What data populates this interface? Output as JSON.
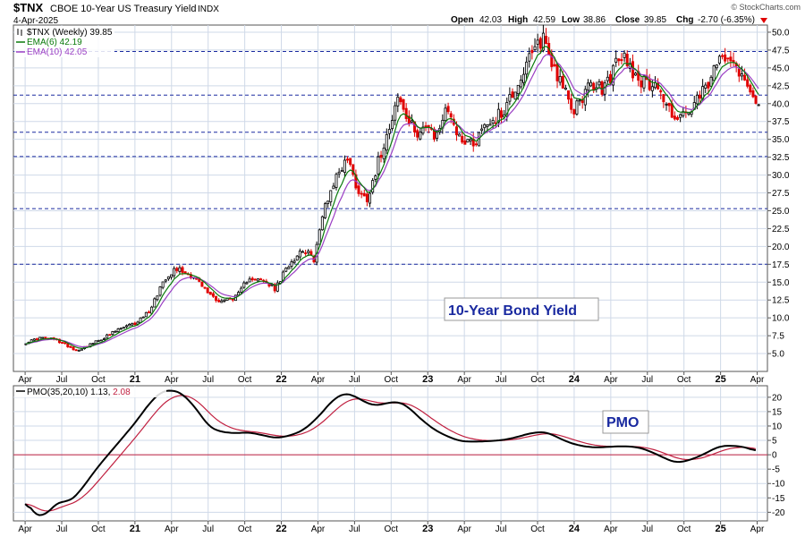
{
  "header": {
    "symbol": "$TNX",
    "name": "CBOE 10-Year US Treasury Yield",
    "exchange": "INDX",
    "date": "4-Apr-2025",
    "watermark": "© StockCharts.com",
    "open_label": "Open",
    "open": "42.03",
    "high_label": "High",
    "high": "42.59",
    "low_label": "Low",
    "low": "38.86",
    "close_label": "Close",
    "close": "39.85",
    "chg_label": "Chg",
    "chg": "-2.70 (-6.35%)"
  },
  "colors": {
    "grid": "#cfd9e8",
    "up": "#000000",
    "down": "#e00000",
    "ema_short": "#0a7a0a",
    "ema_long": "#9b3fc4",
    "pmo": "#000000",
    "pmo_signal": "#c02040",
    "zero_line": "#c02040",
    "dashed_level": "#1a2aa0"
  },
  "chart_data": [
    {
      "type": "candlestick",
      "legend": [
        {
          "name": "$TNX (Weekly)",
          "value": "39.85"
        },
        {
          "name": "EMA(6)",
          "value": "42.19"
        },
        {
          "name": "EMA(10)",
          "value": "42.05"
        }
      ],
      "annotation": "10-Year Bond Yield",
      "ylim": [
        2.5,
        51
      ],
      "yticks": [
        "5.0",
        "7.5",
        "10.0",
        "12.5",
        "15.0",
        "17.5",
        "20.0",
        "22.5",
        "25.0",
        "27.5",
        "30.0",
        "32.5",
        "35.0",
        "37.5",
        "40.0",
        "42.5",
        "45.0",
        "47.5",
        "50.0"
      ],
      "horizontal_levels": [
        17.5,
        25.3,
        32.6,
        36.0,
        41.2,
        47.3
      ],
      "x_ticks": [
        {
          "label": "Apr",
          "x": 2020.25
        },
        {
          "label": "Jul",
          "x": 2020.5
        },
        {
          "label": "Oct",
          "x": 2020.75
        },
        {
          "label": "21",
          "x": 2021.0,
          "bold": true
        },
        {
          "label": "Apr",
          "x": 2021.25
        },
        {
          "label": "Jul",
          "x": 2021.5
        },
        {
          "label": "Oct",
          "x": 2021.75
        },
        {
          "label": "22",
          "x": 2022.0,
          "bold": true
        },
        {
          "label": "Apr",
          "x": 2022.25
        },
        {
          "label": "Jul",
          "x": 2022.5
        },
        {
          "label": "Oct",
          "x": 2022.75
        },
        {
          "label": "23",
          "x": 2023.0,
          "bold": true
        },
        {
          "label": "Apr",
          "x": 2023.25
        },
        {
          "label": "Jul",
          "x": 2023.5
        },
        {
          "label": "Oct",
          "x": 2023.75
        },
        {
          "label": "24",
          "x": 2024.0,
          "bold": true
        },
        {
          "label": "Apr",
          "x": 2024.25
        },
        {
          "label": "Jul",
          "x": 2024.5
        },
        {
          "label": "Oct",
          "x": 2024.75
        },
        {
          "label": "25",
          "x": 2025.0,
          "bold": true
        },
        {
          "label": "Apr",
          "x": 2025.25
        }
      ],
      "close_anchors": [
        [
          2020.25,
          6.5
        ],
        [
          2020.35,
          7.2
        ],
        [
          2020.45,
          7.0
        ],
        [
          2020.55,
          6.0
        ],
        [
          2020.6,
          5.4
        ],
        [
          2020.75,
          6.8
        ],
        [
          2020.9,
          8.5
        ],
        [
          2021.0,
          9.2
        ],
        [
          2021.1,
          11.0
        ],
        [
          2021.2,
          15.5
        ],
        [
          2021.28,
          17.0
        ],
        [
          2021.4,
          15.8
        ],
        [
          2021.5,
          13.5
        ],
        [
          2021.58,
          12.3
        ],
        [
          2021.7,
          13.0
        ],
        [
          2021.78,
          15.8
        ],
        [
          2021.9,
          14.8
        ],
        [
          2021.96,
          14.0
        ],
        [
          2022.05,
          17.5
        ],
        [
          2022.15,
          19.8
        ],
        [
          2022.22,
          18.0
        ],
        [
          2022.3,
          26.0
        ],
        [
          2022.38,
          30.0
        ],
        [
          2022.45,
          32.5
        ],
        [
          2022.52,
          28.0
        ],
        [
          2022.58,
          26.5
        ],
        [
          2022.65,
          31.0
        ],
        [
          2022.75,
          38.0
        ],
        [
          2022.8,
          41.0
        ],
        [
          2022.86,
          37.5
        ],
        [
          2022.92,
          36.0
        ],
        [
          2022.98,
          37.0
        ],
        [
          2023.05,
          35.0
        ],
        [
          2023.1,
          38.0
        ],
        [
          2023.15,
          39.5
        ],
        [
          2023.2,
          35.5
        ],
        [
          2023.32,
          34.5
        ],
        [
          2023.38,
          37.0
        ],
        [
          2023.5,
          38.5
        ],
        [
          2023.58,
          41.5
        ],
        [
          2023.68,
          45.5
        ],
        [
          2023.79,
          49.5
        ],
        [
          2023.85,
          45.5
        ],
        [
          2023.92,
          43.0
        ],
        [
          2023.98,
          38.5
        ],
        [
          2024.05,
          41.0
        ],
        [
          2024.12,
          42.5
        ],
        [
          2024.2,
          42.0
        ],
        [
          2024.3,
          46.0
        ],
        [
          2024.35,
          46.5
        ],
        [
          2024.42,
          44.0
        ],
        [
          2024.5,
          42.5
        ],
        [
          2024.55,
          43.5
        ],
        [
          2024.62,
          40.0
        ],
        [
          2024.7,
          38.0
        ],
        [
          2024.78,
          38.5
        ],
        [
          2024.85,
          40.5
        ],
        [
          2024.95,
          44.0
        ],
        [
          2025.0,
          46.5
        ],
        [
          2025.05,
          47.5
        ],
        [
          2025.12,
          45.0
        ],
        [
          2025.18,
          42.5
        ],
        [
          2025.22,
          42.0
        ],
        [
          2025.26,
          39.85
        ]
      ],
      "ema_short_value": 42.19,
      "ema_long_value": 42.05
    },
    {
      "type": "line",
      "legend": [
        {
          "name": "PMO(35,20,10)",
          "value": "1.13"
        },
        {
          "name": "",
          "value": "2.08"
        }
      ],
      "annotation": "PMO",
      "ylim": [
        -23,
        24
      ],
      "yticks": [
        "20",
        "15",
        "10",
        "5",
        "0",
        "-5",
        "-10",
        "-15",
        "-20"
      ],
      "zero": 0,
      "pmo_anchors": [
        [
          2020.25,
          -15.0
        ],
        [
          2020.3,
          -20.5
        ],
        [
          2020.38,
          -21.5
        ],
        [
          2020.45,
          -17.5
        ],
        [
          2020.5,
          -16.0
        ],
        [
          2020.55,
          -16.5
        ],
        [
          2020.62,
          -13.0
        ],
        [
          2020.75,
          -4.0
        ],
        [
          2020.9,
          5.0
        ],
        [
          2021.0,
          11.0
        ],
        [
          2021.1,
          18.0
        ],
        [
          2021.18,
          22.0
        ],
        [
          2021.25,
          22.5
        ],
        [
          2021.32,
          21.5
        ],
        [
          2021.42,
          16.0
        ],
        [
          2021.5,
          10.0
        ],
        [
          2021.58,
          8.0
        ],
        [
          2021.68,
          7.5
        ],
        [
          2021.78,
          7.8
        ],
        [
          2021.9,
          6.5
        ],
        [
          2021.96,
          5.8
        ],
        [
          2022.05,
          6.5
        ],
        [
          2022.15,
          8.5
        ],
        [
          2022.25,
          13.0
        ],
        [
          2022.35,
          19.0
        ],
        [
          2022.43,
          21.5
        ],
        [
          2022.5,
          20.5
        ],
        [
          2022.58,
          18.0
        ],
        [
          2022.65,
          17.0
        ],
        [
          2022.72,
          18.0
        ],
        [
          2022.8,
          18.5
        ],
        [
          2022.87,
          16.5
        ],
        [
          2022.95,
          12.5
        ],
        [
          2023.05,
          8.5
        ],
        [
          2023.15,
          6.0
        ],
        [
          2023.22,
          4.8
        ],
        [
          2023.3,
          4.5
        ],
        [
          2023.4,
          4.7
        ],
        [
          2023.5,
          5.0
        ],
        [
          2023.6,
          6.0
        ],
        [
          2023.7,
          7.5
        ],
        [
          2023.8,
          8.0
        ],
        [
          2023.87,
          6.5
        ],
        [
          2023.95,
          4.5
        ],
        [
          2024.05,
          3.0
        ],
        [
          2024.15,
          2.5
        ],
        [
          2024.25,
          2.8
        ],
        [
          2024.35,
          3.0
        ],
        [
          2024.45,
          2.5
        ],
        [
          2024.55,
          0.5
        ],
        [
          2024.63,
          -1.5
        ],
        [
          2024.7,
          -2.8
        ],
        [
          2024.78,
          -2.0
        ],
        [
          2024.88,
          0.0
        ],
        [
          2024.95,
          2.0
        ],
        [
          2025.0,
          3.0
        ],
        [
          2025.06,
          3.2
        ],
        [
          2025.12,
          3.0
        ],
        [
          2025.18,
          2.5
        ],
        [
          2025.24,
          1.13
        ]
      ],
      "pmo_signal_value": 2.08
    }
  ]
}
